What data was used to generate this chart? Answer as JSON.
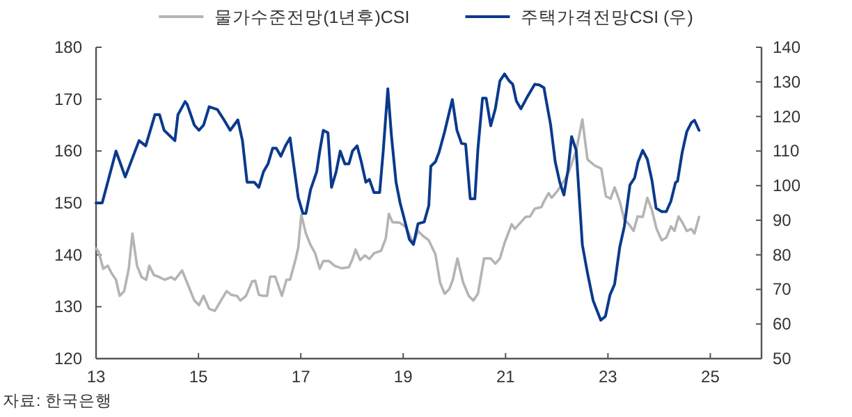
{
  "chart_data": {
    "type": "line",
    "legend": "top",
    "grid": false,
    "xlim": [
      13,
      26
    ],
    "xticks": [
      13,
      15,
      17,
      19,
      21,
      23,
      25
    ],
    "ylim": [
      120,
      180
    ],
    "yticks": [
      120,
      130,
      140,
      150,
      160,
      170,
      180
    ],
    "y2lim": [
      50,
      140
    ],
    "y2ticks": [
      50,
      60,
      70,
      80,
      90,
      100,
      110,
      120,
      130,
      140
    ],
    "annotations": [
      "자료: 한국은행"
    ],
    "series": [
      {
        "name": "물가수준전망(1년후)CSI",
        "color": "#b4b4b4",
        "x": [
          13.0,
          13.05,
          13.14,
          13.23,
          13.3,
          13.39,
          13.46,
          13.55,
          13.64,
          13.71,
          13.8,
          13.89,
          13.98,
          14.04,
          14.13,
          14.24,
          14.34,
          14.47,
          14.54,
          14.68,
          14.81,
          14.92,
          15.01,
          15.1,
          15.21,
          15.32,
          15.44,
          15.55,
          15.64,
          15.75,
          15.82,
          15.93,
          16.05,
          16.11,
          16.18,
          16.27,
          16.34,
          16.4,
          16.5,
          16.63,
          16.72,
          16.79,
          16.9,
          16.95,
          17.01,
          17.1,
          17.19,
          17.28,
          17.37,
          17.44,
          17.55,
          17.66,
          17.8,
          17.94,
          18.01,
          18.07,
          18.16,
          18.25,
          18.34,
          18.43,
          18.57,
          18.66,
          18.72,
          18.79,
          18.93,
          19.06,
          19.2,
          19.29,
          19.38,
          19.5,
          19.63,
          19.72,
          19.81,
          19.9,
          19.97,
          20.06,
          20.17,
          20.28,
          20.37,
          20.46,
          20.58,
          20.71,
          20.8,
          20.89,
          20.98,
          21.12,
          21.18,
          21.3,
          21.39,
          21.48,
          21.57,
          21.7,
          21.75,
          21.84,
          21.9,
          22.02,
          22.15,
          22.24,
          22.38,
          22.5,
          22.6,
          22.74,
          22.87,
          22.96,
          23.05,
          23.13,
          23.23,
          23.32,
          23.41,
          23.5,
          23.58,
          23.68,
          23.77,
          23.86,
          23.95,
          24.05,
          24.14,
          24.23,
          24.3,
          24.38,
          24.45,
          24.54,
          24.63,
          24.69,
          24.78
        ],
        "values": [
          141.2,
          140.6,
          137.3,
          137.9,
          136.5,
          135.2,
          132.1,
          133.0,
          137.4,
          144.1,
          137.9,
          135.7,
          135.2,
          137.9,
          136.1,
          135.7,
          135.2,
          135.7,
          135.2,
          137.0,
          133.9,
          131.2,
          130.3,
          132.1,
          129.6,
          129.2,
          131.2,
          133.0,
          132.3,
          132.1,
          131.2,
          132.1,
          134.9,
          135.0,
          132.3,
          132.1,
          132.1,
          135.8,
          135.8,
          132.1,
          135.2,
          135.2,
          139.2,
          141.4,
          147.7,
          144.1,
          141.9,
          140.3,
          137.3,
          138.8,
          138.8,
          137.9,
          137.4,
          137.6,
          139.2,
          141.0,
          139.0,
          139.9,
          139.2,
          140.3,
          140.8,
          143.2,
          147.9,
          146.3,
          146.2,
          145.3,
          142.1,
          144.6,
          143.7,
          142.8,
          140.1,
          134.7,
          132.5,
          133.4,
          135.2,
          139.3,
          134.7,
          132.1,
          131.2,
          132.5,
          139.3,
          139.3,
          138.3,
          139.3,
          142.3,
          145.9,
          145.0,
          146.3,
          147.3,
          147.4,
          148.9,
          149.2,
          150.3,
          151.9,
          151.0,
          152.4,
          154.4,
          156.1,
          160.1,
          166.1,
          158.4,
          157.2,
          156.6,
          151.3,
          150.8,
          153.0,
          150.3,
          146.8,
          145.9,
          144.6,
          147.4,
          147.3,
          151.0,
          148.6,
          145.0,
          142.8,
          143.3,
          145.5,
          144.6,
          147.4,
          146.3,
          144.6,
          145.0,
          144.1,
          147.3
        ]
      },
      {
        "name": "주택가격전망CSI (우)",
        "color": "#0a3a8c",
        "axis": "y2",
        "x": [
          13.0,
          13.12,
          13.39,
          13.57,
          13.84,
          13.97,
          14.15,
          14.24,
          14.33,
          14.54,
          14.6,
          14.74,
          14.78,
          14.92,
          15.01,
          15.1,
          15.21,
          15.37,
          15.5,
          15.62,
          15.77,
          15.86,
          15.95,
          16.09,
          16.18,
          16.27,
          16.36,
          16.45,
          16.52,
          16.61,
          16.7,
          16.79,
          16.88,
          16.95,
          17.04,
          17.1,
          17.19,
          17.31,
          17.37,
          17.44,
          17.53,
          17.6,
          17.69,
          17.77,
          17.86,
          17.94,
          18.01,
          18.1,
          18.18,
          18.27,
          18.34,
          18.43,
          18.54,
          18.61,
          18.7,
          18.77,
          18.86,
          18.94,
          19.02,
          19.12,
          19.2,
          19.29,
          19.41,
          19.5,
          19.54,
          19.63,
          19.7,
          19.81,
          19.96,
          20.05,
          20.14,
          20.22,
          20.31,
          20.4,
          20.46,
          20.55,
          20.62,
          20.71,
          20.8,
          20.89,
          20.98,
          21.07,
          21.14,
          21.21,
          21.3,
          21.43,
          21.57,
          21.66,
          21.75,
          21.79,
          21.88,
          21.97,
          22.06,
          22.14,
          22.22,
          22.29,
          22.38,
          22.5,
          22.6,
          22.71,
          22.86,
          22.95,
          23.04,
          23.13,
          23.23,
          23.32,
          23.43,
          23.52,
          23.59,
          23.68,
          23.77,
          23.86,
          23.94,
          24.05,
          24.14,
          24.23,
          24.32,
          24.36,
          24.45,
          24.54,
          24.63,
          24.69,
          24.78
        ],
        "values": [
          95,
          95,
          110,
          102.5,
          113,
          111.5,
          120.5,
          120.5,
          116,
          113,
          120.5,
          124.3,
          123.5,
          117.5,
          116,
          117.5,
          122.8,
          122,
          119,
          116,
          119,
          113,
          101,
          101,
          99.5,
          104,
          106.3,
          110.8,
          110.8,
          108.5,
          111.5,
          113.8,
          104,
          96.5,
          92,
          92,
          98.8,
          104,
          110,
          116,
          115.3,
          99.5,
          104,
          110,
          106.3,
          106.3,
          110,
          111.5,
          107,
          101,
          101.8,
          98,
          98,
          110,
          128,
          114.5,
          101,
          95,
          90.5,
          84.5,
          83,
          89,
          89.5,
          94.2,
          105.6,
          106.9,
          109.6,
          115.6,
          124.9,
          116,
          112.2,
          112,
          96.2,
          96.2,
          110.6,
          125.3,
          125.3,
          117.3,
          122.2,
          130.3,
          132.3,
          130.3,
          129.3,
          124.5,
          122.2,
          125.8,
          129.3,
          129.1,
          128.3,
          124.9,
          117.6,
          106.9,
          100.9,
          97.3,
          104.5,
          114.2,
          110.2,
          82.9,
          74.8,
          66.8,
          61.1,
          62.2,
          68.4,
          71.5,
          82.2,
          88.2,
          100.2,
          102.2,
          106.9,
          110.2,
          107.6,
          101.5,
          93.5,
          92.5,
          92.5,
          95.5,
          100.9,
          101.3,
          109.6,
          115.6,
          118.2,
          118.9,
          116
        ]
      }
    ]
  }
}
